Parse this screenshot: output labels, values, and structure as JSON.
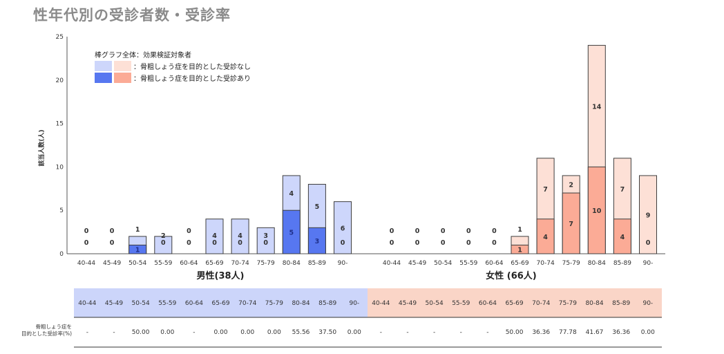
{
  "page_title": "性年代別の受診者数・受診率",
  "legend": {
    "title": "棒グラフ全体：効果検証対象者",
    "item_without": "：骨粗しょう症を目的とした受診なし",
    "item_with": "：骨粗しょう症を目的とした受診あり"
  },
  "colors": {
    "male_light": "#cdd6fb",
    "male_dark": "#5777f0",
    "female_light": "#fde0d6",
    "female_dark": "#fbab96",
    "male_table_bg": "#ccd5fa",
    "female_table_bg": "#fad5c7",
    "bar_stroke": "#3d3d3d"
  },
  "table": {
    "rate_label_line1": "骨粗しょう症を",
    "rate_label_line2": "目的とした受診率(%)"
  },
  "chart_data": {
    "type": "bar",
    "stacked": true,
    "ylabel": "該当人数(人)",
    "ylim": [
      0,
      25
    ],
    "yticks": [
      0,
      5,
      10,
      15,
      20,
      25
    ],
    "grid": false,
    "legend_position": "top-left",
    "groups": [
      {
        "name": "男性(38人)",
        "categories": [
          "40-44",
          "45-49",
          "50-54",
          "55-59",
          "60-64",
          "65-69",
          "70-74",
          "75-79",
          "80-84",
          "85-89",
          "90-"
        ],
        "series": [
          {
            "name": "骨粗しょう症を目的とした受診あり",
            "values": [
              0,
              0,
              1,
              0,
              0,
              0,
              0,
              0,
              5,
              3,
              0
            ]
          },
          {
            "name": "骨粗しょう症を目的とした受診なし",
            "values": [
              0,
              0,
              1,
              2,
              0,
              4,
              4,
              3,
              4,
              5,
              6
            ]
          }
        ],
        "rates": [
          "-",
          "-",
          "50.00",
          "0.00",
          "-",
          "0.00",
          "0.00",
          "0.00",
          "55.56",
          "37.50",
          "0.00"
        ]
      },
      {
        "name": "女性 (66人)",
        "categories": [
          "40-44",
          "45-49",
          "50-54",
          "55-59",
          "60-64",
          "65-69",
          "70-74",
          "75-79",
          "80-84",
          "85-89",
          "90-"
        ],
        "series": [
          {
            "name": "骨粗しょう症を目的とした受診あり",
            "values": [
              0,
              0,
              0,
              0,
              0,
              1,
              4,
              7,
              10,
              4,
              0
            ]
          },
          {
            "name": "骨粗しょう症を目的とした受診なし",
            "values": [
              0,
              0,
              0,
              0,
              0,
              1,
              7,
              2,
              14,
              7,
              9
            ]
          }
        ],
        "rates": [
          "-",
          "-",
          "-",
          "-",
          "-",
          "50.00",
          "36.36",
          "77.78",
          "41.67",
          "36.36",
          "0.00"
        ]
      }
    ]
  }
}
